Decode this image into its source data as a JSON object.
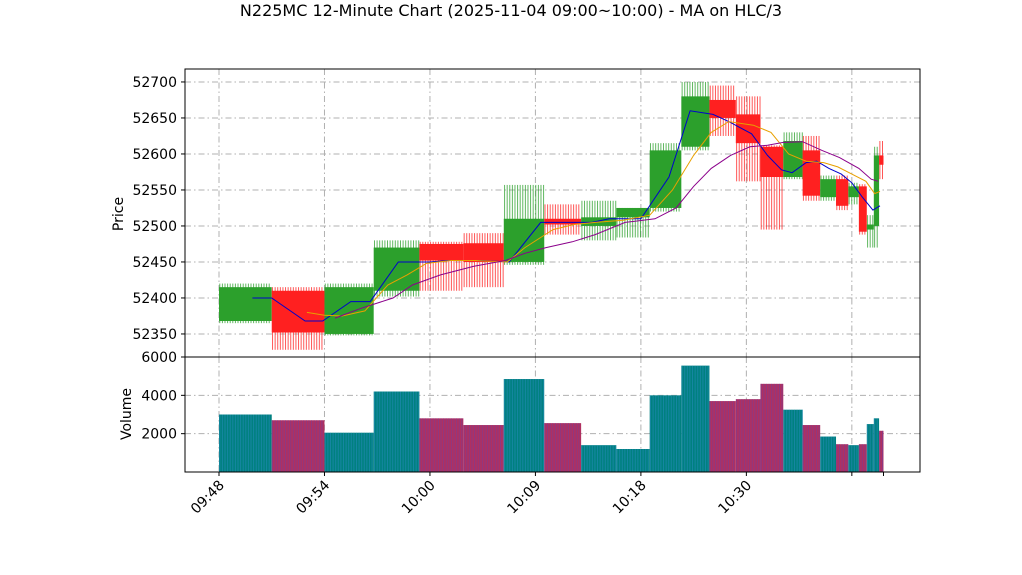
{
  "chart_data": {
    "title": "N225MC 12-Minute Chart (2025-11-04 09:00~10:00) - MA on HLC/3",
    "type": "candlestick",
    "x_tick_labels": [
      "09:48",
      "09:54",
      "10:00",
      "10:09",
      "10:18",
      "10:30"
    ],
    "price_panel": {
      "ylabel": "Price",
      "ylim": [
        52318,
        52718
      ],
      "yticks": [
        52350,
        52400,
        52450,
        52500,
        52550,
        52600,
        52650,
        52700
      ],
      "grid": true,
      "colors": {
        "up": "#2ca02c",
        "down": "#ff2020",
        "ma_short": "#0000cc",
        "ma_mid": "#e8a000",
        "ma_long": "#8b008b"
      }
    },
    "volume_panel": {
      "ylabel": "Volume",
      "ylim": [
        0,
        6000
      ],
      "yticks": [
        2000,
        4000,
        6000
      ],
      "ytick_labels": [
        "2000",
        "4000",
        "6000"
      ],
      "grid": true,
      "colors": {
        "up": "#008080",
        "down": "#b03060"
      }
    },
    "candles": [
      {
        "x": 0.0,
        "w": 3.0,
        "o": 52368,
        "h": 52420,
        "l": 52365,
        "c": 52415,
        "v": 3000
      },
      {
        "x": 3.0,
        "w": 3.0,
        "o": 52410,
        "h": 52415,
        "l": 52328,
        "c": 52352,
        "v": 2700
      },
      {
        "x": 6.0,
        "w": 2.8,
        "o": 52350,
        "h": 52420,
        "l": 52348,
        "c": 52415,
        "v": 2050
      },
      {
        "x": 8.8,
        "w": 2.6,
        "o": 52410,
        "h": 52480,
        "l": 52402,
        "c": 52470,
        "v": 4200
      },
      {
        "x": 11.4,
        "w": 2.5,
        "o": 52475,
        "h": 52478,
        "l": 52410,
        "c": 52452,
        "v": 2800
      },
      {
        "x": 13.9,
        "w": 2.3,
        "o": 52476,
        "h": 52490,
        "l": 52415,
        "c": 52450,
        "v": 2450
      },
      {
        "x": 16.2,
        "w": 2.3,
        "o": 52450,
        "h": 52557,
        "l": 52446,
        "c": 52510,
        "v": 4850
      },
      {
        "x": 18.5,
        "w": 2.1,
        "o": 52510,
        "h": 52530,
        "l": 52488,
        "c": 52502,
        "v": 2550
      },
      {
        "x": 20.6,
        "w": 2.0,
        "o": 52500,
        "h": 52535,
        "l": 52480,
        "c": 52512,
        "v": 1400
      },
      {
        "x": 22.6,
        "w": 1.9,
        "o": 52512,
        "h": 52525,
        "l": 52484,
        "c": 52525,
        "v": 1200
      },
      {
        "x": 24.5,
        "w": 1.8,
        "o": 52525,
        "h": 52615,
        "l": 52520,
        "c": 52605,
        "v": 4000
      },
      {
        "x": 26.3,
        "w": 1.6,
        "o": 52610,
        "h": 52700,
        "l": 52605,
        "c": 52680,
        "v": 5550
      },
      {
        "x": 27.9,
        "w": 1.5,
        "o": 52675,
        "h": 52695,
        "l": 52625,
        "c": 52650,
        "v": 3700
      },
      {
        "x": 29.4,
        "w": 1.4,
        "o": 52655,
        "h": 52680,
        "l": 52562,
        "c": 52615,
        "v": 3800
      },
      {
        "x": 30.8,
        "w": 1.3,
        "o": 52610,
        "h": 52612,
        "l": 52495,
        "c": 52568,
        "v": 4600
      },
      {
        "x": 32.1,
        "w": 1.1,
        "o": 52568,
        "h": 52630,
        "l": 52565,
        "c": 52618,
        "v": 3250
      },
      {
        "x": 33.2,
        "w": 1.0,
        "o": 52605,
        "h": 52625,
        "l": 52535,
        "c": 52542,
        "v": 2450
      },
      {
        "x": 34.2,
        "w": 0.9,
        "o": 52540,
        "h": 52570,
        "l": 52535,
        "c": 52565,
        "v": 1850
      },
      {
        "x": 35.1,
        "w": 0.7,
        "o": 52565,
        "h": 52570,
        "l": 52522,
        "c": 52528,
        "v": 1450
      },
      {
        "x": 35.8,
        "w": 0.6,
        "o": 52540,
        "h": 52560,
        "l": 52530,
        "c": 52555,
        "v": 1400
      },
      {
        "x": 36.4,
        "w": 0.45,
        "o": 52555,
        "h": 52558,
        "l": 52488,
        "c": 52492,
        "v": 1450
      },
      {
        "x": 36.85,
        "w": 0.4,
        "o": 52495,
        "h": 52515,
        "l": 52470,
        "c": 52502,
        "v": 2500
      },
      {
        "x": 37.25,
        "w": 0.3,
        "o": 52500,
        "h": 52610,
        "l": 52470,
        "c": 52598,
        "v": 2800
      },
      {
        "x": 37.55,
        "w": 0.25,
        "o": 52598,
        "h": 52618,
        "l": 52565,
        "c": 52585,
        "v": 2150
      }
    ],
    "ma_series": [
      {
        "points": [
          [
            1.9,
            52400
          ],
          [
            3.0,
            52400
          ],
          [
            4.9,
            52368
          ],
          [
            5.9,
            52368
          ],
          [
            7.5,
            52395
          ],
          [
            8.6,
            52395
          ],
          [
            10.2,
            52450
          ],
          [
            12.0,
            52450
          ],
          [
            13.0,
            52452
          ],
          [
            14.9,
            52452
          ],
          [
            16.5,
            52450
          ],
          [
            18.3,
            52505
          ],
          [
            19.6,
            52505
          ],
          [
            21.2,
            52505
          ],
          [
            22.2,
            52510
          ],
          [
            24.0,
            52510
          ],
          [
            25.6,
            52568
          ],
          [
            26.8,
            52660
          ],
          [
            28.1,
            52655
          ],
          [
            29.0,
            52645
          ],
          [
            30.3,
            52628
          ],
          [
            31.2,
            52598
          ],
          [
            32.0,
            52578
          ],
          [
            32.6,
            52574
          ],
          [
            33.4,
            52588
          ],
          [
            34.0,
            52590
          ],
          [
            34.7,
            52580
          ],
          [
            35.4,
            52572
          ],
          [
            36.0,
            52560
          ],
          [
            36.6,
            52540
          ],
          [
            37.2,
            52522
          ],
          [
            37.6,
            52528
          ]
        ]
      },
      {
        "points": [
          [
            5.0,
            52380
          ],
          [
            6.0,
            52376
          ],
          [
            7.0,
            52375
          ],
          [
            8.3,
            52382
          ],
          [
            9.6,
            52418
          ],
          [
            10.7,
            52432
          ],
          [
            11.8,
            52448
          ],
          [
            13.2,
            52452
          ],
          [
            14.6,
            52452
          ],
          [
            16.4,
            52450
          ],
          [
            17.4,
            52470
          ],
          [
            19.0,
            52495
          ],
          [
            20.2,
            52502
          ],
          [
            21.4,
            52505
          ],
          [
            23.0,
            52508
          ],
          [
            24.5,
            52515
          ],
          [
            25.8,
            52550
          ],
          [
            27.0,
            52598
          ],
          [
            28.0,
            52630
          ],
          [
            29.0,
            52645
          ],
          [
            30.4,
            52640
          ],
          [
            31.4,
            52630
          ],
          [
            32.4,
            52600
          ],
          [
            33.4,
            52590
          ],
          [
            34.4,
            52588
          ],
          [
            35.2,
            52582
          ],
          [
            36.0,
            52572
          ],
          [
            36.8,
            52562
          ],
          [
            37.3,
            52545
          ],
          [
            37.6,
            52548
          ]
        ]
      },
      {
        "points": [
          [
            6.6,
            52372
          ],
          [
            8.0,
            52385
          ],
          [
            9.9,
            52400
          ],
          [
            11.0,
            52418
          ],
          [
            12.6,
            52432
          ],
          [
            14.5,
            52444
          ],
          [
            16.3,
            52452
          ],
          [
            17.4,
            52462
          ],
          [
            18.6,
            52470
          ],
          [
            20.1,
            52478
          ],
          [
            21.4,
            52488
          ],
          [
            23.1,
            52505
          ],
          [
            24.8,
            52510
          ],
          [
            26.0,
            52525
          ],
          [
            27.0,
            52555
          ],
          [
            28.0,
            52580
          ],
          [
            29.1,
            52598
          ],
          [
            30.2,
            52610
          ],
          [
            31.2,
            52612
          ],
          [
            32.1,
            52616
          ],
          [
            33.2,
            52617
          ],
          [
            34.3,
            52605
          ],
          [
            35.3,
            52595
          ],
          [
            36.4,
            52580
          ],
          [
            37.1,
            52565
          ],
          [
            37.5,
            52562
          ]
        ]
      }
    ]
  }
}
